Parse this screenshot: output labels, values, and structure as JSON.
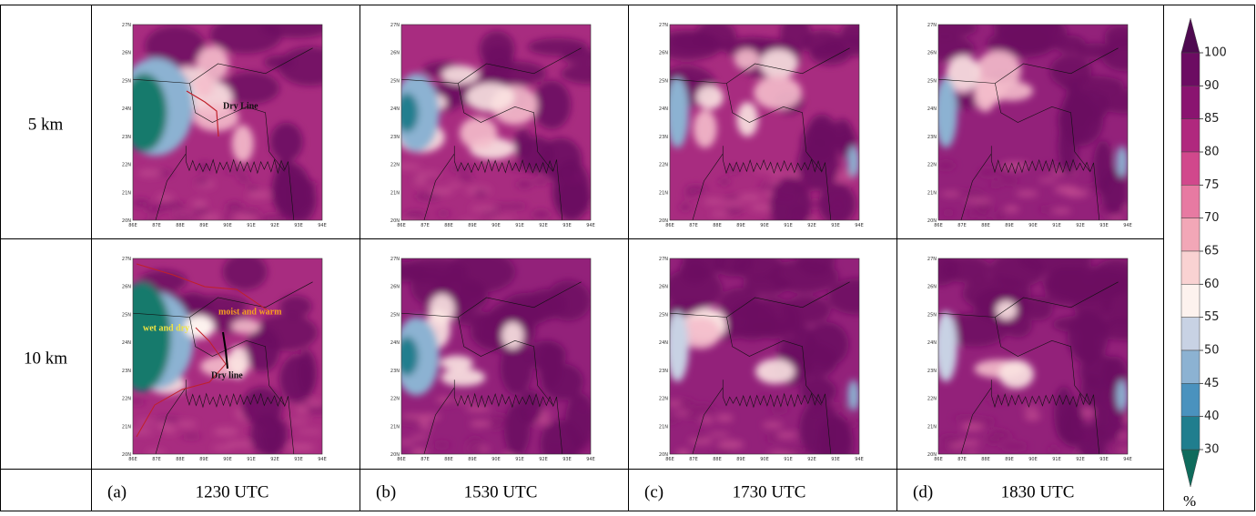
{
  "rows": [
    {
      "label": "5 km"
    },
    {
      "label": "10 km"
    }
  ],
  "columns": [
    {
      "letter": "(a)",
      "time": "1230 UTC"
    },
    {
      "letter": "(b)",
      "time": "1530 UTC"
    },
    {
      "letter": "(c)",
      "time": "1730 UTC"
    },
    {
      "letter": "(d)",
      "time": "1830 UTC"
    }
  ],
  "map_axes": {
    "lat": [
      "20N",
      "21N",
      "22N",
      "23N",
      "24N",
      "25N",
      "26N",
      "27N"
    ],
    "lon": [
      "86E",
      "87E",
      "88E",
      "89E",
      "90E",
      "91E",
      "92E",
      "93E",
      "94E"
    ]
  },
  "annotations": [
    "Dry Line",
    "moist and warm",
    "wet and dry",
    "Dry line"
  ],
  "colorbar": {
    "ticks": [
      100,
      90,
      85,
      80,
      75,
      70,
      65,
      60,
      55,
      50,
      45,
      40,
      30
    ],
    "unit": "%",
    "colors": [
      "#4e0a50",
      "#6c0c62",
      "#8a1470",
      "#b0287e",
      "#d1488c",
      "#e77aa2",
      "#f2a7b7",
      "#f9d2d2",
      "#fdf2ee",
      "#c8d2e4",
      "#8cb2d2",
      "#4a92be",
      "#207e8e",
      "#0f6b5c"
    ]
  }
}
